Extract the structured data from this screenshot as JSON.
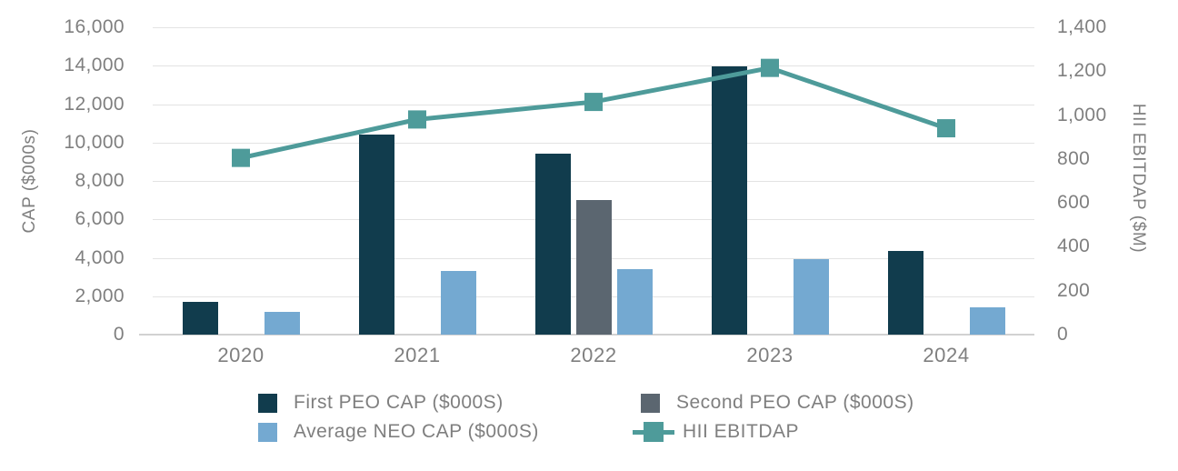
{
  "chart_data": {
    "type": "bar",
    "subtype": "combo-bar-line",
    "categories": [
      "2020",
      "2021",
      "2022",
      "2023",
      "2024"
    ],
    "series": [
      {
        "name": "First PEO CAP ($000S)",
        "type": "bar",
        "axis": "left",
        "color": "#113c4d",
        "values": [
          1700,
          10400,
          9400,
          13950,
          4350
        ]
      },
      {
        "name": "Second PEO CAP ($000S)",
        "type": "bar",
        "axis": "left",
        "color": "#5b6670",
        "values": [
          null,
          null,
          7000,
          null,
          null
        ]
      },
      {
        "name": "Average NEO CAP ($000S)",
        "type": "bar",
        "axis": "left",
        "color": "#74a9d1",
        "values": [
          1200,
          3300,
          3400,
          3950,
          1400
        ]
      },
      {
        "name": "HII EBITDAP",
        "type": "line",
        "axis": "right",
        "color": "#4e9b9a",
        "values": [
          805,
          980,
          1060,
          1215,
          940
        ]
      }
    ],
    "left_axis": {
      "label": "CAP ($000s)",
      "min": 0,
      "max": 16000,
      "step": 2000,
      "tick_values": [
        0,
        2000,
        4000,
        6000,
        8000,
        10000,
        12000,
        14000,
        16000
      ],
      "tick_labels": [
        "0",
        "2,000",
        "4,000",
        "6,000",
        "8,000",
        "10,000",
        "12,000",
        "14,000",
        "16,000"
      ]
    },
    "right_axis": {
      "label": "HII EBITDAP ($M)",
      "min": 0,
      "max": 1400,
      "step": 200,
      "tick_values": [
        0,
        200,
        400,
        600,
        800,
        1000,
        1200,
        1400
      ],
      "tick_labels": [
        "0",
        "200",
        "400",
        "600",
        "800",
        "1,000",
        "1,200",
        "1,400"
      ]
    },
    "grid": true,
    "legend_position": "bottom"
  },
  "legend": {
    "items": [
      {
        "label": "First PEO CAP ($000S)",
        "swatch": "square",
        "color": "#113c4d",
        "col": 0,
        "row": 0
      },
      {
        "label": "Second PEO CAP ($000S)",
        "swatch": "square",
        "color": "#5b6670",
        "col": 1,
        "row": 0
      },
      {
        "label": "Average NEO CAP ($000S)",
        "swatch": "square",
        "color": "#74a9d1",
        "col": 0,
        "row": 1
      },
      {
        "label": "HII EBITDAP",
        "swatch": "line-marker",
        "color": "#4e9b9a",
        "col": 1,
        "row": 1
      }
    ]
  },
  "colors": {
    "first_peo": "#113c4d",
    "second_peo": "#5b6670",
    "average_neo": "#74a9d1",
    "ebitdap_line": "#4e9b9a",
    "text": "#7f7f7f",
    "gridline": "#e3e3e3"
  }
}
